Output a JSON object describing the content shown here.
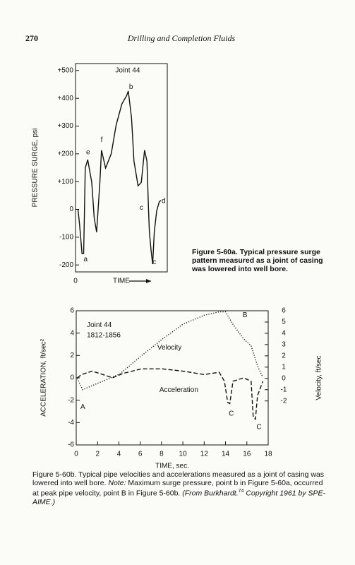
{
  "page_number": "270",
  "running_head": "Drilling and Completion Fluids",
  "chart_data": [
    {
      "type": "line",
      "y_label": "PRESSURE SURGE, psi",
      "x_label": "TIME",
      "caption": "Figure 5-60a. Typical pressure surge pattern measured as a joint of casing was lowered into well bore.",
      "xlim": [
        0,
        113
      ],
      "xticks": [
        0
      ],
      "ylim": [
        -225,
        525
      ],
      "yticks": [
        {
          "value": 500,
          "label": "+500"
        },
        {
          "value": 400,
          "label": "+400"
        },
        {
          "value": 300,
          "label": "+300"
        },
        {
          "value": 200,
          "label": "+200"
        },
        {
          "value": 100,
          "label": "+100"
        },
        0,
        -100,
        -200
      ],
      "series": [
        {
          "color": "#111111",
          "linestyle": "solid",
          "x": [
            3,
            5,
            8,
            10,
            11,
            12,
            15,
            20,
            23,
            26,
            30,
            32,
            37,
            44,
            50,
            57,
            63,
            65,
            69,
            72,
            77,
            81,
            85,
            88,
            90,
            91,
            93,
            95,
            97,
            100,
            103,
            105
          ],
          "values": [
            0,
            -56,
            -159,
            -159,
            -5,
            149,
            179,
            97,
            -31,
            -82,
            97,
            213,
            149,
            200,
            303,
            379,
            410,
            426,
            328,
            174,
            85,
            97,
            213,
            174,
            -5,
            -82,
            -146,
            -197,
            -82,
            -5,
            26,
            33
          ]
        }
      ],
      "annotations": [
        {
          "text": "Joint 44",
          "x": 49,
          "y": 500
        },
        {
          "text": "a",
          "x": 10,
          "y": -180
        },
        {
          "text": "e",
          "x": 13,
          "y": 205
        },
        {
          "text": "f",
          "x": 31,
          "y": 250
        },
        {
          "text": "b",
          "x": 66,
          "y": 440
        },
        {
          "text": "c",
          "x": 79,
          "y": 5
        },
        {
          "text": "d",
          "x": 106,
          "y": 30
        },
        {
          "text": "c",
          "x": 95,
          "y": -190
        }
      ]
    },
    {
      "type": "line",
      "y_label": "ACCELERATION, ft/sec²",
      "y2_label": "Velocity, ft/sec",
      "x_label": "TIME, sec.",
      "caption_parts": [
        "Figure 5-60b. Typical pipe velocities and accelerations measured as a joint of casing was lowered into well bore. ",
        "Note:",
        " Maximum surge pressure, point b in Figure 5-60a, occurred at peak pipe velocity, point B in Figure 5-60b. ",
        "(From Burkhardt.",
        "74",
        " Copyright 1961 by SPE-AIME.)"
      ],
      "xlim": [
        0,
        18
      ],
      "xticks": [
        0,
        2,
        4,
        6,
        8,
        10,
        12,
        14,
        16,
        18
      ],
      "ylim": [
        -6,
        6
      ],
      "yticks": [
        6,
        4,
        2,
        0,
        -2,
        -4,
        -6
      ],
      "y2lim": [
        -5.9,
        6
      ],
      "y2ticks": [
        6,
        5,
        4,
        3,
        2,
        1,
        0,
        -1,
        -2
      ],
      "series": [
        {
          "name": "Velocity",
          "axis": "y2",
          "color": "#111111",
          "linestyle": "dotted",
          "x": [
            0.1,
            0.6,
            1.1,
            2.1,
            4.1,
            6.1,
            8.1,
            10,
            12,
            13.4,
            14,
            14.7,
            15.7,
            16.4,
            17,
            17.5
          ],
          "values": [
            0,
            -1,
            -0.8,
            -0.4,
            0.4,
            2,
            3.5,
            4.8,
            5.6,
            5.9,
            5.9,
            4.8,
            3.5,
            2.9,
            1.1,
            0.1
          ]
        },
        {
          "name": "Acceleration",
          "color": "#111111",
          "linestyle": "dashed",
          "x": [
            0.1,
            0.5,
            1.5,
            2.5,
            3.4,
            4.4,
            6.1,
            8.1,
            10,
            12,
            13.4,
            13.9,
            14.2,
            14.4,
            14.7,
            15.7,
            16.4,
            16.6,
            16.8,
            17,
            17.5
          ],
          "values": [
            0,
            0.3,
            0.6,
            0.3,
            0,
            0.4,
            0.8,
            0.8,
            0.6,
            0.3,
            0.5,
            -0.3,
            -2.2,
            -2.3,
            -0.3,
            0,
            -0.3,
            -3.5,
            -3.7,
            -1.6,
            -0.3
          ]
        }
      ],
      "annotations": [
        {
          "text": "Joint 44",
          "x": 1,
          "y": 4.7
        },
        {
          "text": "1812-1856",
          "x": 1,
          "y": 3.8
        },
        {
          "text": "Velocity",
          "x": 7.6,
          "y": 2.7
        },
        {
          "text": "Acceleration",
          "x": 7.8,
          "y": -1.1
        },
        {
          "text": "A",
          "x": 0.4,
          "y": -2.6
        },
        {
          "text": "B",
          "x": 15.6,
          "y": 5.6
        },
        {
          "text": "C",
          "x": 14.3,
          "y": -3.2
        },
        {
          "text": "C",
          "x": 16.9,
          "y": -4.4
        }
      ]
    }
  ]
}
